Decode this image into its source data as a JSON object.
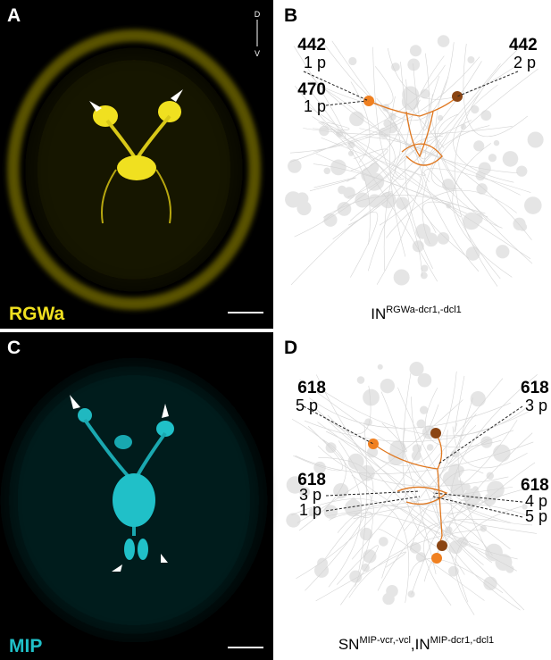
{
  "panel_a": {
    "letter": "A",
    "compass_top": "D",
    "compass_bottom": "V",
    "stain": "RGWa"
  },
  "panel_b": {
    "letter": "B",
    "callouts": [
      {
        "id": "442",
        "count": "1 p"
      },
      {
        "id": "470",
        "count": "1 p"
      },
      {
        "id": "442",
        "count": "2 p"
      }
    ],
    "caption": {
      "base": "IN",
      "sup": "RGWa-dcr1,-dcl1"
    }
  },
  "panel_c": {
    "letter": "C",
    "stain": "MIP"
  },
  "panel_d": {
    "letter": "D",
    "callouts": [
      {
        "id": "618",
        "count": "5 p"
      },
      {
        "id": "618",
        "count": "3 p"
      },
      {
        "id": "618",
        "count": "3 p"
      },
      {
        "count": "1 p"
      },
      {
        "id": "618",
        "count": "4 p"
      },
      {
        "count": "5 p"
      }
    ],
    "caption": {
      "base1": "SN",
      "sup1": "MIP-vcr,-vcl",
      "sep": ",",
      "base2": "IN",
      "sup2": "MIP-dcr1,-dcl1"
    }
  }
}
